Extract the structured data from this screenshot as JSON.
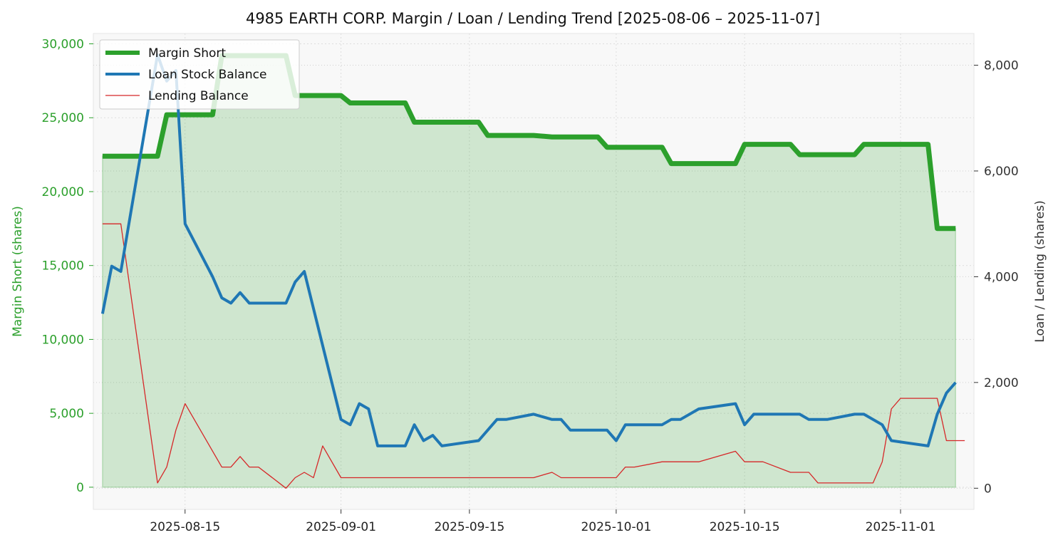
{
  "chart_data": {
    "type": "line",
    "title": "4985 EARTH CORP. Margin / Loan / Lending Trend [2025-08-06 – 2025-11-07]",
    "xlabel": "",
    "ylabel_left": "Margin Short (shares)",
    "ylabel_right": "Loan / Lending (shares)",
    "x_range": [
      "2025-08-05",
      "2025-11-09"
    ],
    "ylim_left": [
      -1500,
      30700
    ],
    "ylim_right": [
      -400,
      8600
    ],
    "left_ticks": [
      0,
      5000,
      10000,
      15000,
      20000,
      25000,
      30000
    ],
    "left_tick_labels": [
      "0",
      "5,000",
      "10,000",
      "15,000",
      "20,000",
      "25,000",
      "30,000"
    ],
    "right_ticks": [
      0,
      2000,
      4000,
      6000,
      8000
    ],
    "right_tick_labels": [
      "0",
      "2,000",
      "4,000",
      "6,000",
      "8,000"
    ],
    "x_ticks": [
      "2025-08-15",
      "2025-09-01",
      "2025-09-15",
      "2025-10-01",
      "2025-10-15",
      "2025-11-01"
    ],
    "x_tick_labels": [
      "2025-08-15",
      "2025-09-01",
      "2025-09-15",
      "2025-10-01",
      "2025-10-15",
      "2025-11-01"
    ],
    "grid": true,
    "legend_position": "top-left",
    "colors": {
      "margin": "#2ca02c",
      "loan": "#1f77b4",
      "lending": "#d62728",
      "fill": "#2ca02c",
      "left_axis_text": "#2ca02c",
      "right_axis_text": "#333333",
      "plot_bg": "#f8f8f8"
    },
    "series": [
      {
        "name": "Margin Short",
        "axis": "left",
        "points": [
          [
            "2025-08-06",
            22400
          ],
          [
            "2025-08-12",
            22400
          ],
          [
            "2025-08-13",
            25200
          ],
          [
            "2025-08-18",
            25200
          ],
          [
            "2025-08-19",
            29200
          ],
          [
            "2025-08-26",
            29200
          ],
          [
            "2025-08-27",
            26500
          ],
          [
            "2025-09-01",
            26500
          ],
          [
            "2025-09-02",
            26000
          ],
          [
            "2025-09-08",
            26000
          ],
          [
            "2025-09-09",
            24700
          ],
          [
            "2025-09-16",
            24700
          ],
          [
            "2025-09-17",
            23800
          ],
          [
            "2025-09-22",
            23800
          ],
          [
            "2025-09-24",
            23700
          ],
          [
            "2025-09-29",
            23700
          ],
          [
            "2025-09-30",
            23000
          ],
          [
            "2025-10-06",
            23000
          ],
          [
            "2025-10-07",
            21900
          ],
          [
            "2025-10-14",
            21900
          ],
          [
            "2025-10-15",
            23200
          ],
          [
            "2025-10-20",
            23200
          ],
          [
            "2025-10-21",
            22500
          ],
          [
            "2025-10-27",
            22500
          ],
          [
            "2025-10-28",
            23200
          ],
          [
            "2025-11-04",
            23200
          ],
          [
            "2025-11-05",
            17500
          ],
          [
            "2025-11-07",
            17500
          ]
        ]
      },
      {
        "name": "Loan Stock Balance",
        "axis": "right",
        "points": [
          [
            "2025-08-06",
            3300
          ],
          [
            "2025-08-07",
            4200
          ],
          [
            "2025-08-08",
            4100
          ],
          [
            "2025-08-12",
            8200
          ],
          [
            "2025-08-13",
            7700
          ],
          [
            "2025-08-14",
            7900
          ],
          [
            "2025-08-15",
            5000
          ],
          [
            "2025-08-18",
            4000
          ],
          [
            "2025-08-19",
            3600
          ],
          [
            "2025-08-20",
            3500
          ],
          [
            "2025-08-21",
            3700
          ],
          [
            "2025-08-22",
            3500
          ],
          [
            "2025-08-26",
            3500
          ],
          [
            "2025-08-27",
            3900
          ],
          [
            "2025-08-28",
            4100
          ],
          [
            "2025-09-01",
            1300
          ],
          [
            "2025-09-02",
            1200
          ],
          [
            "2025-09-03",
            1600
          ],
          [
            "2025-09-04",
            1500
          ],
          [
            "2025-09-05",
            800
          ],
          [
            "2025-09-08",
            800
          ],
          [
            "2025-09-09",
            1200
          ],
          [
            "2025-09-10",
            900
          ],
          [
            "2025-09-11",
            1000
          ],
          [
            "2025-09-12",
            800
          ],
          [
            "2025-09-16",
            900
          ],
          [
            "2025-09-18",
            1300
          ],
          [
            "2025-09-19",
            1300
          ],
          [
            "2025-09-22",
            1400
          ],
          [
            "2025-09-24",
            1300
          ],
          [
            "2025-09-25",
            1300
          ],
          [
            "2025-09-26",
            1100
          ],
          [
            "2025-09-30",
            1100
          ],
          [
            "2025-10-01",
            900
          ],
          [
            "2025-10-02",
            1200
          ],
          [
            "2025-10-06",
            1200
          ],
          [
            "2025-10-07",
            1300
          ],
          [
            "2025-10-08",
            1300
          ],
          [
            "2025-10-10",
            1500
          ],
          [
            "2025-10-14",
            1600
          ],
          [
            "2025-10-15",
            1200
          ],
          [
            "2025-10-16",
            1400
          ],
          [
            "2025-10-21",
            1400
          ],
          [
            "2025-10-22",
            1300
          ],
          [
            "2025-10-24",
            1300
          ],
          [
            "2025-10-27",
            1400
          ],
          [
            "2025-10-28",
            1400
          ],
          [
            "2025-10-30",
            1200
          ],
          [
            "2025-10-31",
            900
          ],
          [
            "2025-11-04",
            800
          ],
          [
            "2025-11-05",
            1400
          ],
          [
            "2025-11-06",
            1800
          ],
          [
            "2025-11-07",
            2000
          ]
        ]
      },
      {
        "name": "Lending Balance",
        "axis": "right",
        "points": [
          [
            "2025-08-06",
            5000
          ],
          [
            "2025-08-08",
            5000
          ],
          [
            "2025-08-12",
            100
          ],
          [
            "2025-08-13",
            400
          ],
          [
            "2025-08-14",
            1100
          ],
          [
            "2025-08-15",
            1600
          ],
          [
            "2025-08-19",
            400
          ],
          [
            "2025-08-20",
            400
          ],
          [
            "2025-08-21",
            600
          ],
          [
            "2025-08-22",
            400
          ],
          [
            "2025-08-23",
            400
          ],
          [
            "2025-08-26",
            0
          ],
          [
            "2025-08-27",
            200
          ],
          [
            "2025-08-28",
            300
          ],
          [
            "2025-08-29",
            200
          ],
          [
            "2025-08-30",
            800
          ],
          [
            "2025-09-01",
            200
          ],
          [
            "2025-09-05",
            200
          ],
          [
            "2025-09-22",
            200
          ],
          [
            "2025-09-24",
            300
          ],
          [
            "2025-09-25",
            200
          ],
          [
            "2025-09-30",
            200
          ],
          [
            "2025-10-01",
            200
          ],
          [
            "2025-10-02",
            400
          ],
          [
            "2025-10-03",
            400
          ],
          [
            "2025-10-06",
            500
          ],
          [
            "2025-10-09",
            500
          ],
          [
            "2025-10-10",
            500
          ],
          [
            "2025-10-14",
            700
          ],
          [
            "2025-10-15",
            500
          ],
          [
            "2025-10-17",
            500
          ],
          [
            "2025-10-20",
            300
          ],
          [
            "2025-10-22",
            300
          ],
          [
            "2025-10-23",
            100
          ],
          [
            "2025-10-29",
            100
          ],
          [
            "2025-10-30",
            500
          ],
          [
            "2025-10-31",
            1500
          ],
          [
            "2025-11-01",
            1700
          ],
          [
            "2025-11-05",
            1700
          ],
          [
            "2025-11-06",
            900
          ],
          [
            "2025-11-08",
            900
          ]
        ]
      }
    ],
    "legend": [
      "Margin Short",
      "Loan Stock Balance",
      "Lending Balance"
    ]
  }
}
